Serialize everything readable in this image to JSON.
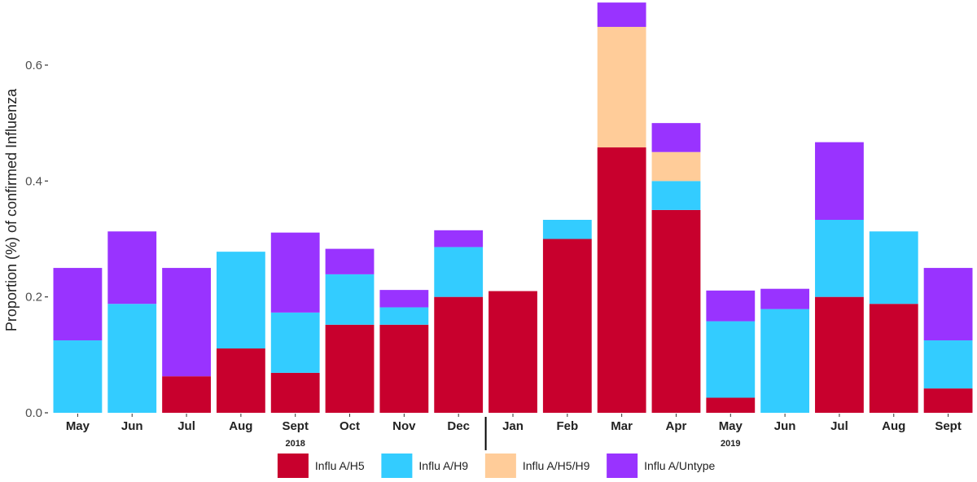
{
  "chart_data": {
    "type": "bar",
    "stacked": true,
    "ylabel": "Proportion (%) of confirmed Influenza",
    "xlabel": "",
    "ylim": [
      0,
      0.7
    ],
    "yticks": [
      "0.0",
      "0.2",
      "0.4",
      "0.6"
    ],
    "grid": false,
    "legend_position": "bottom",
    "categories": [
      "May",
      "Jun",
      "Jul",
      "Aug",
      "Sept",
      "Oct",
      "Nov",
      "Dec",
      "Jan",
      "Feb",
      "Mar",
      "Apr",
      "May",
      "Jun",
      "Jul",
      "Aug",
      "Sept"
    ],
    "years": [
      {
        "label": "2018",
        "center_category": 4
      },
      {
        "label": "2019",
        "center_category": 12
      }
    ],
    "year_divider_after_category": 7,
    "series": [
      {
        "name": "Influ A/H5",
        "color": "#C8002D",
        "values": [
          0,
          0,
          0.063,
          0.111,
          0.069,
          0.152,
          0.152,
          0.2,
          0.21,
          0.3,
          0.458,
          0.35,
          0.026,
          0,
          0.2,
          0.188,
          0.042
        ]
      },
      {
        "name": "Influ A/H9",
        "color": "#33CCFF",
        "values": [
          0.125,
          0.188,
          0,
          0.167,
          0.104,
          0.087,
          0.03,
          0.086,
          0,
          0.033,
          0,
          0.05,
          0.132,
          0.179,
          0.133,
          0.125,
          0.083
        ]
      },
      {
        "name": "Influ A/H5/H9",
        "color": "#FFCC99",
        "values": [
          0,
          0,
          0,
          0,
          0,
          0,
          0,
          0,
          0,
          0,
          0.208,
          0.05,
          0,
          0,
          0,
          0,
          0
        ]
      },
      {
        "name": "Influ A/Untype",
        "color": "#9933FF",
        "values": [
          0.125,
          0.125,
          0.187,
          0,
          0.138,
          0.044,
          0.03,
          0.029,
          0,
          0,
          0.042,
          0.05,
          0.053,
          0.035,
          0.134,
          0,
          0.125
        ]
      }
    ]
  }
}
